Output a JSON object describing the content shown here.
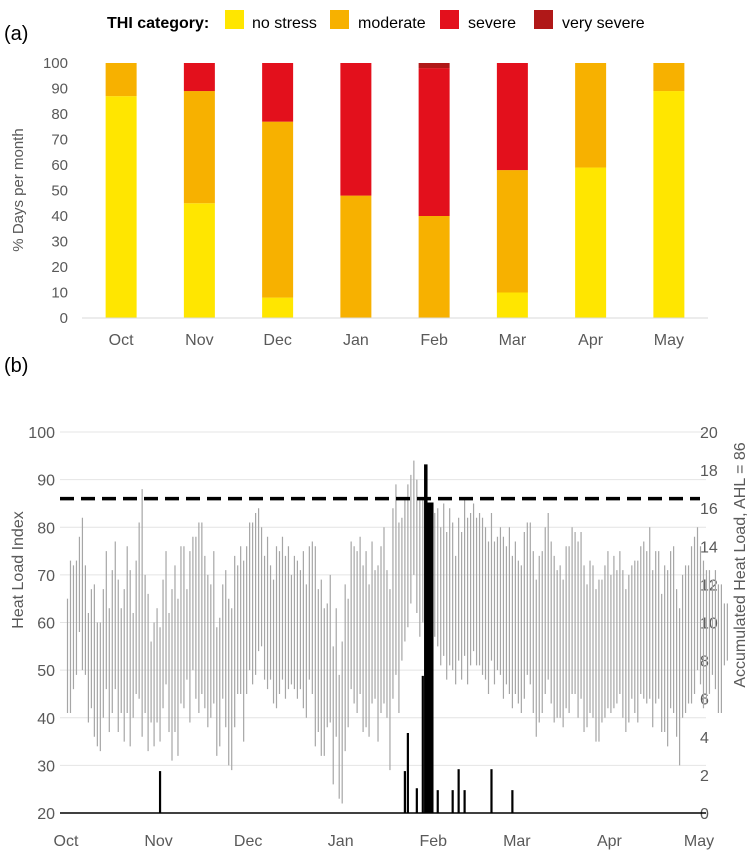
{
  "panel_a": {
    "label": "(a)",
    "chart_data": {
      "type": "bar",
      "stacked": true,
      "legend": {
        "title": "THI category:",
        "placement": "top",
        "entries": [
          "no stress",
          "moderate",
          "severe",
          "very severe"
        ]
      },
      "categories": [
        "Oct",
        "Nov",
        "Dec",
        "Jan",
        "Feb",
        "Mar",
        "Apr",
        "May"
      ],
      "series": [
        {
          "name": "no stress",
          "color": "#FFE600",
          "values": [
            87,
            45,
            8,
            0,
            0,
            10,
            59,
            89
          ]
        },
        {
          "name": "moderate",
          "color": "#F7B100",
          "values": [
            13,
            44,
            69,
            48,
            40,
            48,
            41,
            11
          ]
        },
        {
          "name": "severe",
          "color": "#E3101C",
          "values": [
            0,
            11,
            23,
            52,
            58,
            42,
            0,
            0
          ]
        },
        {
          "name": "very severe",
          "color": "#B01818",
          "values": [
            0,
            0,
            0,
            0,
            2,
            0,
            0,
            0
          ]
        }
      ],
      "ylabel": "% Days per month",
      "ylim": [
        0,
        100
      ],
      "yticks": [
        0,
        10,
        20,
        30,
        40,
        50,
        60,
        70,
        80,
        90,
        100
      ],
      "grid": false
    }
  },
  "panel_b": {
    "label": "(b)",
    "chart_data": {
      "type": "line",
      "ylabel": "Heat Load Index",
      "ylabel_right": "Accumulated Heat Load, AHL = 86",
      "ylim": [
        20,
        100
      ],
      "yticks": [
        20,
        30,
        40,
        50,
        60,
        70,
        80,
        90,
        100
      ],
      "ylim_right": [
        0,
        20
      ],
      "yticks_right": [
        0,
        2,
        4,
        6,
        8,
        10,
        12,
        14,
        16,
        18,
        20
      ],
      "x_ticks": [
        "Oct",
        "Nov",
        "Dec",
        "Jan",
        "Feb",
        "Mar",
        "Apr",
        "May"
      ],
      "grid": "horizontal",
      "threshold": {
        "value": 86,
        "style": "dashed",
        "color": "#000000"
      },
      "daily_range_color": "#A6A6A6",
      "ahl_color": "#000000",
      "daily_hli_range": [
        [
          41,
          65
        ],
        [
          41,
          73
        ],
        [
          46,
          72
        ],
        [
          49,
          73
        ],
        [
          58,
          78
        ],
        [
          50,
          82
        ],
        [
          49,
          72
        ],
        [
          39,
          62
        ],
        [
          42,
          67
        ],
        [
          36,
          68
        ],
        [
          34,
          60
        ],
        [
          33,
          60
        ],
        [
          40,
          67
        ],
        [
          46,
          75
        ],
        [
          37,
          63
        ],
        [
          41,
          71
        ],
        [
          46,
          77
        ],
        [
          37,
          69
        ],
        [
          41,
          63
        ],
        [
          35,
          67
        ],
        [
          41,
          76
        ],
        [
          34,
          71
        ],
        [
          40,
          62
        ],
        [
          45,
          73
        ],
        [
          44,
          81
        ],
        [
          36,
          88
        ],
        [
          41,
          70
        ],
        [
          33,
          66
        ],
        [
          39,
          56
        ],
        [
          34,
          60
        ],
        [
          39,
          63
        ],
        [
          35,
          59
        ],
        [
          42,
          69
        ],
        [
          47,
          75
        ],
        [
          37,
          62
        ],
        [
          31,
          67
        ],
        [
          37,
          72
        ],
        [
          32,
          65
        ],
        [
          43,
          76
        ],
        [
          42,
          76
        ],
        [
          48,
          67
        ],
        [
          39,
          75
        ],
        [
          50,
          78
        ],
        [
          44,
          78
        ],
        [
          41,
          81
        ],
        [
          45,
          81
        ],
        [
          42,
          74
        ],
        [
          38,
          70
        ],
        [
          40,
          68
        ],
        [
          43,
          75
        ],
        [
          32,
          59
        ],
        [
          34,
          61
        ],
        [
          44,
          68
        ],
        [
          38,
          71
        ],
        [
          30,
          65
        ],
        [
          29,
          63
        ],
        [
          38,
          74
        ],
        [
          45,
          72
        ],
        [
          45,
          76
        ],
        [
          35,
          73
        ],
        [
          45,
          76
        ],
        [
          50,
          81
        ],
        [
          47,
          81
        ],
        [
          49,
          83
        ],
        [
          54,
          84
        ],
        [
          55,
          80
        ],
        [
          48,
          74
        ],
        [
          46,
          78
        ],
        [
          48,
          72
        ],
        [
          43,
          69
        ],
        [
          42,
          76
        ],
        [
          45,
          75
        ],
        [
          48,
          78
        ],
        [
          44,
          74
        ],
        [
          46,
          76
        ],
        [
          47,
          70
        ],
        [
          46,
          74
        ],
        [
          44,
          73
        ],
        [
          46,
          71
        ],
        [
          42,
          75
        ],
        [
          40,
          68
        ],
        [
          48,
          76
        ],
        [
          45,
          77
        ],
        [
          34,
          76
        ],
        [
          37,
          67
        ],
        [
          32,
          69
        ],
        [
          32,
          63
        ],
        [
          38,
          64
        ],
        [
          39,
          70
        ],
        [
          26,
          55
        ],
        [
          36,
          63
        ],
        [
          23,
          49
        ],
        [
          22,
          56
        ],
        [
          33,
          68
        ],
        [
          38,
          65
        ],
        [
          46,
          77
        ],
        [
          43,
          76
        ],
        [
          41,
          75
        ],
        [
          45,
          78
        ],
        [
          37,
          72
        ],
        [
          38,
          75
        ],
        [
          36,
          68
        ],
        [
          43,
          77
        ],
        [
          44,
          71
        ],
        [
          35,
          72
        ],
        [
          41,
          76
        ],
        [
          43,
          80
        ],
        [
          40,
          71
        ],
        [
          29,
          67
        ],
        [
          44,
          84
        ],
        [
          49,
          89
        ],
        [
          41,
          81
        ],
        [
          52,
          82
        ],
        [
          56,
          86
        ],
        [
          59,
          89
        ],
        [
          64,
          91
        ],
        [
          70,
          94
        ],
        [
          62,
          90
        ],
        [
          57,
          86
        ],
        [
          60,
          86
        ],
        [
          55,
          84
        ],
        [
          51,
          82
        ],
        [
          53,
          85
        ],
        [
          57,
          83
        ],
        [
          55,
          84
        ],
        [
          51,
          80
        ],
        [
          53,
          85
        ],
        [
          48,
          79
        ],
        [
          51,
          84
        ],
        [
          50,
          81
        ],
        [
          47,
          74
        ],
        [
          52,
          82
        ],
        [
          48,
          79
        ],
        [
          53,
          86
        ],
        [
          47,
          82
        ],
        [
          51,
          83
        ],
        [
          54,
          85
        ],
        [
          51,
          82
        ],
        [
          51,
          83
        ],
        [
          49,
          82
        ],
        [
          48,
          80
        ],
        [
          45,
          77
        ],
        [
          52,
          83
        ],
        [
          47,
          77
        ],
        [
          50,
          78
        ],
        [
          49,
          80
        ],
        [
          44,
          78
        ],
        [
          47,
          76
        ],
        [
          45,
          80
        ],
        [
          42,
          74
        ],
        [
          45,
          77
        ],
        [
          43,
          73
        ],
        [
          41,
          72
        ],
        [
          44,
          79
        ],
        [
          49,
          81
        ],
        [
          47,
          81
        ],
        [
          41,
          75
        ],
        [
          36,
          69
        ],
        [
          39,
          74
        ],
        [
          41,
          75
        ],
        [
          45,
          80
        ],
        [
          48,
          83
        ],
        [
          43,
          77
        ],
        [
          39,
          74
        ],
        [
          40,
          71
        ],
        [
          40,
          72
        ],
        [
          38,
          69
        ],
        [
          42,
          76
        ],
        [
          41,
          76
        ],
        [
          45,
          80
        ],
        [
          45,
          79
        ],
        [
          40,
          77
        ],
        [
          44,
          79
        ],
        [
          37,
          72
        ],
        [
          38,
          68
        ],
        [
          41,
          73
        ],
        [
          40,
          72
        ],
        [
          35,
          67
        ],
        [
          35,
          69
        ],
        [
          39,
          69
        ],
        [
          40,
          72
        ],
        [
          42,
          75
        ],
        [
          41,
          70
        ],
        [
          42,
          74
        ],
        [
          43,
          71
        ],
        [
          45,
          75
        ],
        [
          40,
          71
        ],
        [
          37,
          67
        ],
        [
          39,
          70
        ],
        [
          44,
          72
        ],
        [
          41,
          73
        ],
        [
          39,
          73
        ],
        [
          45,
          76
        ],
        [
          44,
          77
        ],
        [
          43,
          75
        ],
        [
          44,
          80
        ],
        [
          38,
          71
        ],
        [
          43,
          75
        ],
        [
          44,
          75
        ],
        [
          37,
          66
        ],
        [
          37,
          72
        ],
        [
          34,
          71
        ],
        [
          42,
          75
        ],
        [
          41,
          76
        ],
        [
          36,
          67
        ],
        [
          30,
          63
        ],
        [
          40,
          70
        ],
        [
          41,
          72
        ],
        [
          43,
          72
        ],
        [
          43,
          76
        ],
        [
          45,
          78
        ],
        [
          50,
          80
        ],
        [
          47,
          76
        ],
        [
          42,
          73
        ],
        [
          43,
          71
        ],
        [
          45,
          71
        ],
        [
          49,
          69
        ],
        [
          46,
          71
        ],
        [
          41,
          68
        ],
        [
          41,
          68
        ],
        [
          51,
          64
        ],
        [
          52,
          64
        ]
      ],
      "accumulated_heat_load": [
        {
          "date": "Nov 1",
          "value": 2.2
        },
        {
          "date": "Jan 22",
          "value": 2.2
        },
        {
          "date": "Jan 23",
          "value": 4.2
        },
        {
          "date": "Jan 26",
          "value": 1.3
        },
        {
          "date": "Jan 28",
          "value": 7.2
        },
        {
          "date": "Jan 29",
          "value": 18.3
        },
        {
          "date": "Jan 30",
          "value": 16.3
        },
        {
          "date": "Jan 31",
          "value": 16.3
        },
        {
          "date": "Feb 2",
          "value": 1.2
        },
        {
          "date": "Feb 7",
          "value": 1.2
        },
        {
          "date": "Feb 9",
          "value": 2.3
        },
        {
          "date": "Feb 11",
          "value": 1.2
        },
        {
          "date": "Feb 20",
          "value": 2.3
        },
        {
          "date": "Feb 27",
          "value": 1.2
        }
      ]
    }
  }
}
